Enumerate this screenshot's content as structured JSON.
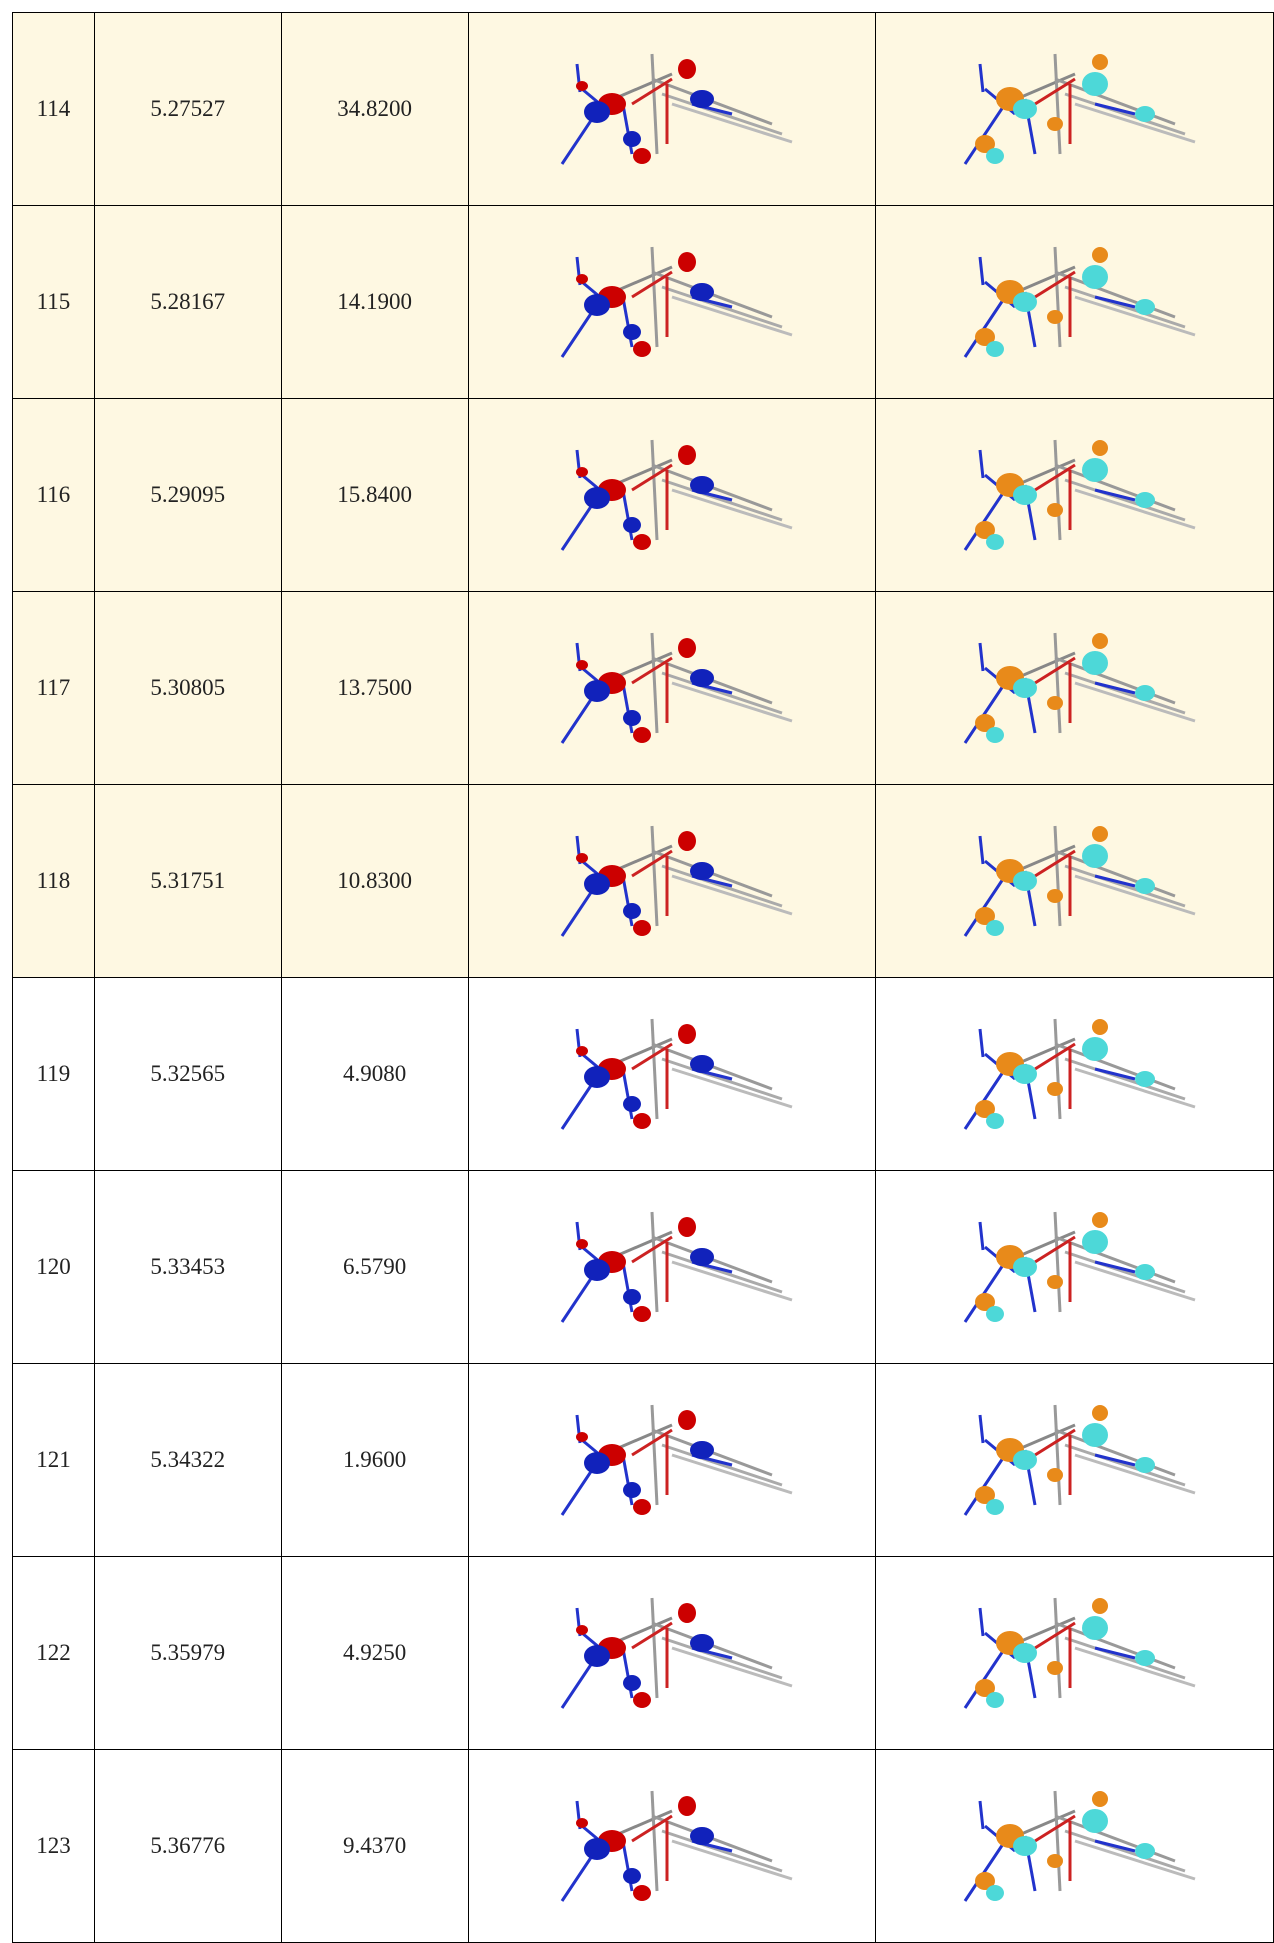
{
  "table": {
    "rows": [
      [
        "114",
        "5.27527",
        "34.8200"
      ],
      [
        "115",
        "5.28167",
        "14.1900"
      ],
      [
        "116",
        "5.29095",
        "15.8400"
      ],
      [
        "117",
        "5.30805",
        "13.7500"
      ],
      [
        "118",
        "5.31751",
        "10.8300"
      ],
      [
        "119",
        "5.32565",
        "4.9080"
      ],
      [
        "120",
        "5.33453",
        "6.5790"
      ],
      [
        "121",
        "5.34322",
        "1.9600"
      ],
      [
        "122",
        "5.35979",
        "4.9250"
      ],
      [
        "123",
        "5.36776",
        "9.4370"
      ]
    ]
  }
}
